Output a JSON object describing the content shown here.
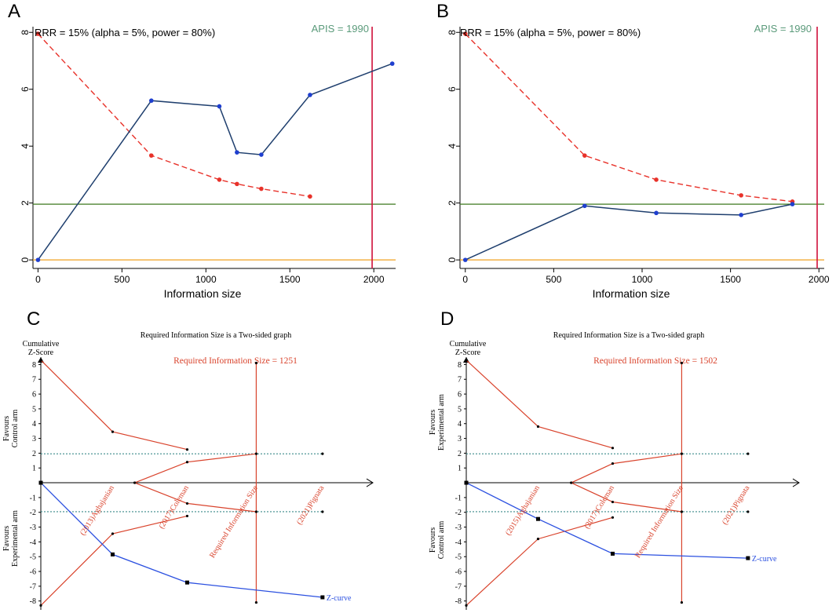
{
  "colors": {
    "blue_ab": "#1f3f6e",
    "blue_dot": "#1f3fcf",
    "red": "#e8322a",
    "green": "#3d7a1e",
    "orange": "#f0a020",
    "apis": "#d0103a",
    "apis_text": "#5a9a7a",
    "red_cd": "#d9432c",
    "blue_cd": "#2b50e0",
    "teal": "#3a8a8a"
  },
  "chart_data": [
    {
      "id": "A",
      "type": "line",
      "panel_label": "A",
      "annotation": "RRR = 15% (alpha = 5%, power = 80%)",
      "apis_label": "APIS = 1990",
      "apis_x": 1990,
      "xlabel": "Information size",
      "xlim": [
        -30,
        2130
      ],
      "ylim": [
        -0.3,
        8.2
      ],
      "xticks": [
        0,
        500,
        1000,
        1500,
        2000
      ],
      "yticks": [
        0,
        2,
        4,
        6,
        8
      ],
      "series": [
        {
          "name": "Z-curve",
          "x": [
            0,
            675,
            1080,
            1185,
            1330,
            1620,
            2110
          ],
          "y": [
            0,
            5.6,
            5.4,
            3.78,
            3.7,
            5.8,
            6.9
          ]
        },
        {
          "name": "Monitoring boundary",
          "x": [
            0,
            675,
            1080,
            1185,
            1330,
            1620
          ],
          "y": [
            7.95,
            3.67,
            2.82,
            2.67,
            2.5,
            2.23
          ]
        }
      ],
      "hlines": {
        "green": 1.96,
        "orange": 0
      }
    },
    {
      "id": "B",
      "type": "line",
      "panel_label": "B",
      "annotation": "RRR = 15% (alpha = 5%, power = 80%)",
      "apis_label": "APIS = 1990",
      "apis_x": 1990,
      "xlabel": "Information size",
      "xlim": [
        -30,
        2030
      ],
      "ylim": [
        -0.3,
        8.2
      ],
      "xticks": [
        0,
        500,
        1000,
        1500,
        2000
      ],
      "yticks": [
        0,
        2,
        4,
        6,
        8
      ],
      "series": [
        {
          "name": "Z-curve",
          "x": [
            0,
            675,
            1080,
            1560,
            1850
          ],
          "y": [
            0,
            1.9,
            1.65,
            1.58,
            1.96
          ]
        },
        {
          "name": "Monitoring boundary",
          "x": [
            0,
            675,
            1080,
            1560,
            1850
          ],
          "y": [
            7.95,
            3.67,
            2.82,
            2.27,
            2.05
          ]
        }
      ],
      "hlines": {
        "green": 1.96,
        "orange": 0
      }
    },
    {
      "id": "C",
      "type": "line",
      "panel_label": "C",
      "title": "Required Information Size is a Two-sided graph",
      "ylabel_top": "Cumulative",
      "ylabel_bottom": "Z-Score",
      "ris_label": "Required Information Size = 1251",
      "favours_upper": [
        "Favours",
        "Control arm"
      ],
      "favours_lower": [
        "Favours",
        "Experimental arm"
      ],
      "yticks": [
        8,
        7,
        6,
        5,
        4,
        3,
        2,
        1,
        -1,
        -2,
        -3,
        -4,
        -5,
        -6,
        -7,
        -8
      ],
      "ylim": [
        -8.6,
        8.5
      ],
      "xlim": [
        0,
        1.1
      ],
      "trial_labels": [
        {
          "x": 0.26,
          "label": "(2013)Aghajanian"
        },
        {
          "x": 0.53,
          "label": "(2017)Coleman"
        },
        {
          "x": 0.78,
          "label": "Required Information Size"
        },
        {
          "x": 1.02,
          "label": "(2021)Pignata"
        }
      ],
      "z_curve": {
        "x": [
          0,
          0.26,
          0.53,
          1.02
        ],
        "y": [
          0,
          -4.85,
          -6.75,
          -7.75
        ],
        "label": "Z-curve"
      },
      "upper_boundary": {
        "x": [
          0,
          0.26,
          0.53
        ],
        "y": [
          8.3,
          3.45,
          2.25
        ]
      },
      "lower_boundary": {
        "x": [
          0,
          0.26,
          0.53
        ],
        "y": [
          -8.3,
          -3.45,
          -2.25
        ]
      },
      "futility_upper": {
        "x": [
          0.34,
          0.53,
          0.78
        ],
        "y": [
          0,
          1.4,
          1.96
        ]
      },
      "futility_lower": {
        "x": [
          0.34,
          0.53,
          0.78
        ],
        "y": [
          0,
          -1.4,
          -1.96
        ]
      },
      "ris_x": 0.78,
      "hlines": [
        1.96,
        -1.96
      ],
      "hline_end": 1.02
    },
    {
      "id": "D",
      "type": "line",
      "panel_label": "D",
      "title": "Required Information Size is a Two-sided graph",
      "ylabel_top": "Cumulative",
      "ylabel_bottom": "Z-Score",
      "ris_label": "Required Information Size = 1502",
      "favours_upper": [
        "Favours",
        "Experimental arm"
      ],
      "favours_lower": [
        "Favours",
        "Control arm"
      ],
      "yticks": [
        8,
        7,
        6,
        5,
        4,
        3,
        2,
        1,
        -1,
        -2,
        -3,
        -4,
        -5,
        -6,
        -7,
        -8
      ],
      "ylim": [
        -8.6,
        8.5
      ],
      "xlim": [
        0,
        1.1
      ],
      "trial_labels": [
        {
          "x": 0.26,
          "label": "(2015)Aghajanian"
        },
        {
          "x": 0.53,
          "label": "(2017)Coleman"
        },
        {
          "x": 0.78,
          "label": "Required Information Size"
        },
        {
          "x": 1.02,
          "label": "(2021)Pignata"
        }
      ],
      "z_curve": {
        "x": [
          0,
          0.26,
          0.53,
          1.02
        ],
        "y": [
          0,
          -2.45,
          -4.8,
          -5.1
        ],
        "label": "Z-curve"
      },
      "upper_boundary": {
        "x": [
          0,
          0.26,
          0.53
        ],
        "y": [
          8.3,
          3.8,
          2.35
        ]
      },
      "lower_boundary": {
        "x": [
          0,
          0.26,
          0.53
        ],
        "y": [
          -8.3,
          -3.8,
          -2.35
        ]
      },
      "futility_upper": {
        "x": [
          0.38,
          0.53,
          0.78
        ],
        "y": [
          0,
          1.3,
          1.96
        ]
      },
      "futility_lower": {
        "x": [
          0.38,
          0.53,
          0.78
        ],
        "y": [
          0,
          -1.3,
          -1.96
        ]
      },
      "ris_x": 0.78,
      "hlines": [
        1.96,
        -1.96
      ],
      "hline_end": 1.02
    }
  ]
}
